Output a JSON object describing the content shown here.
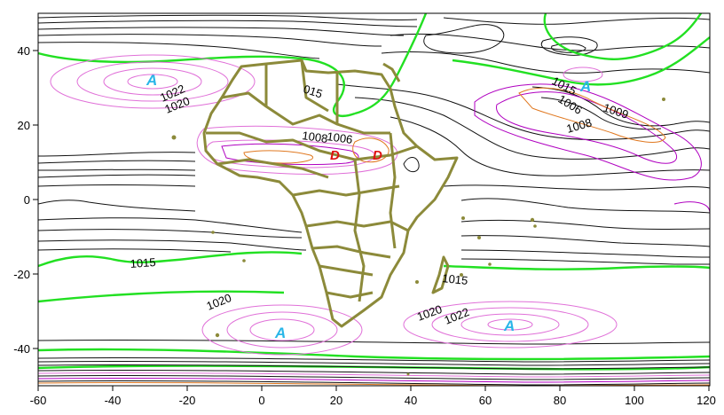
{
  "map": {
    "x_axis": {
      "min": -60,
      "max": 120,
      "ticks": [
        "-60",
        "-40",
        "-20",
        "0",
        "20",
        "40",
        "60",
        "80",
        "100",
        "120"
      ]
    },
    "y_axis": {
      "min": -50,
      "max": 50,
      "ticks": [
        "40",
        "20",
        "0",
        "-20",
        "-40"
      ]
    },
    "colors": {
      "frame": "#000000",
      "isobar_black": "#111111",
      "isobar_1015": "#22e022",
      "isobar_pink": "#e070d8",
      "isobar_magenta": "#b000c0",
      "isobar_orange": "#e07820",
      "coastline": "#8c8a3a",
      "high_center": "#29b6e8",
      "low_center": "#e01010"
    },
    "isobar_labels": [
      {
        "id": "l1022a",
        "text": "1022"
      },
      {
        "id": "l1020a",
        "text": "1020"
      },
      {
        "id": "l015",
        "text": "015"
      },
      {
        "id": "l1008a",
        "text": "1008"
      },
      {
        "id": "l1006a",
        "text": "1006"
      },
      {
        "id": "l1015ne",
        "text": "1015"
      },
      {
        "id": "l1006ne",
        "text": "1006"
      },
      {
        "id": "l1009",
        "text": "1009"
      },
      {
        "id": "l1008ne",
        "text": "1008"
      },
      {
        "id": "l1015w",
        "text": "1015"
      },
      {
        "id": "l1015e",
        "text": "1015"
      },
      {
        "id": "l1020sw",
        "text": "1020"
      },
      {
        "id": "l1020se",
        "text": "1020"
      },
      {
        "id": "l1022se",
        "text": "1022"
      }
    ],
    "centers": [
      {
        "id": "A1",
        "letter": "A",
        "type": "high"
      },
      {
        "id": "A2",
        "letter": "A",
        "type": "high"
      },
      {
        "id": "A3",
        "letter": "A",
        "type": "high"
      },
      {
        "id": "A4",
        "letter": "A",
        "type": "high"
      },
      {
        "id": "D1",
        "letter": "D",
        "type": "low"
      },
      {
        "id": "D2",
        "letter": "D",
        "type": "low"
      }
    ]
  }
}
